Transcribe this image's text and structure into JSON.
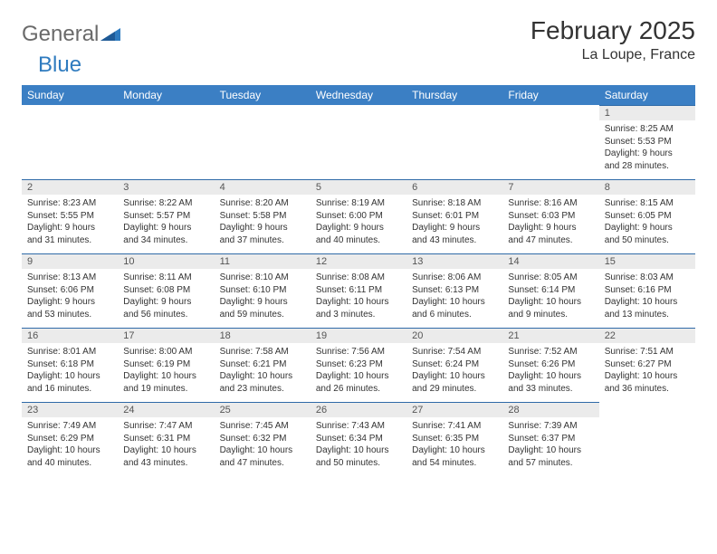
{
  "brand": {
    "part1": "General",
    "part2": "Blue"
  },
  "title": "February 2025",
  "location": "La Loupe, France",
  "colors": {
    "header_bg": "#3b7fc4",
    "header_text": "#ffffff",
    "daynum_bg": "#ebebeb",
    "day_border": "#2f6aa8",
    "text": "#333333",
    "logo_gray": "#6a6a6a",
    "logo_blue": "#2f7bbf"
  },
  "weekdays": [
    "Sunday",
    "Monday",
    "Tuesday",
    "Wednesday",
    "Thursday",
    "Friday",
    "Saturday"
  ],
  "weeks": [
    [
      null,
      null,
      null,
      null,
      null,
      null,
      {
        "n": "1",
        "sr": "Sunrise: 8:25 AM",
        "ss": "Sunset: 5:53 PM",
        "dl": "Daylight: 9 hours and 28 minutes."
      }
    ],
    [
      {
        "n": "2",
        "sr": "Sunrise: 8:23 AM",
        "ss": "Sunset: 5:55 PM",
        "dl": "Daylight: 9 hours and 31 minutes."
      },
      {
        "n": "3",
        "sr": "Sunrise: 8:22 AM",
        "ss": "Sunset: 5:57 PM",
        "dl": "Daylight: 9 hours and 34 minutes."
      },
      {
        "n": "4",
        "sr": "Sunrise: 8:20 AM",
        "ss": "Sunset: 5:58 PM",
        "dl": "Daylight: 9 hours and 37 minutes."
      },
      {
        "n": "5",
        "sr": "Sunrise: 8:19 AM",
        "ss": "Sunset: 6:00 PM",
        "dl": "Daylight: 9 hours and 40 minutes."
      },
      {
        "n": "6",
        "sr": "Sunrise: 8:18 AM",
        "ss": "Sunset: 6:01 PM",
        "dl": "Daylight: 9 hours and 43 minutes."
      },
      {
        "n": "7",
        "sr": "Sunrise: 8:16 AM",
        "ss": "Sunset: 6:03 PM",
        "dl": "Daylight: 9 hours and 47 minutes."
      },
      {
        "n": "8",
        "sr": "Sunrise: 8:15 AM",
        "ss": "Sunset: 6:05 PM",
        "dl": "Daylight: 9 hours and 50 minutes."
      }
    ],
    [
      {
        "n": "9",
        "sr": "Sunrise: 8:13 AM",
        "ss": "Sunset: 6:06 PM",
        "dl": "Daylight: 9 hours and 53 minutes."
      },
      {
        "n": "10",
        "sr": "Sunrise: 8:11 AM",
        "ss": "Sunset: 6:08 PM",
        "dl": "Daylight: 9 hours and 56 minutes."
      },
      {
        "n": "11",
        "sr": "Sunrise: 8:10 AM",
        "ss": "Sunset: 6:10 PM",
        "dl": "Daylight: 9 hours and 59 minutes."
      },
      {
        "n": "12",
        "sr": "Sunrise: 8:08 AM",
        "ss": "Sunset: 6:11 PM",
        "dl": "Daylight: 10 hours and 3 minutes."
      },
      {
        "n": "13",
        "sr": "Sunrise: 8:06 AM",
        "ss": "Sunset: 6:13 PM",
        "dl": "Daylight: 10 hours and 6 minutes."
      },
      {
        "n": "14",
        "sr": "Sunrise: 8:05 AM",
        "ss": "Sunset: 6:14 PM",
        "dl": "Daylight: 10 hours and 9 minutes."
      },
      {
        "n": "15",
        "sr": "Sunrise: 8:03 AM",
        "ss": "Sunset: 6:16 PM",
        "dl": "Daylight: 10 hours and 13 minutes."
      }
    ],
    [
      {
        "n": "16",
        "sr": "Sunrise: 8:01 AM",
        "ss": "Sunset: 6:18 PM",
        "dl": "Daylight: 10 hours and 16 minutes."
      },
      {
        "n": "17",
        "sr": "Sunrise: 8:00 AM",
        "ss": "Sunset: 6:19 PM",
        "dl": "Daylight: 10 hours and 19 minutes."
      },
      {
        "n": "18",
        "sr": "Sunrise: 7:58 AM",
        "ss": "Sunset: 6:21 PM",
        "dl": "Daylight: 10 hours and 23 minutes."
      },
      {
        "n": "19",
        "sr": "Sunrise: 7:56 AM",
        "ss": "Sunset: 6:23 PM",
        "dl": "Daylight: 10 hours and 26 minutes."
      },
      {
        "n": "20",
        "sr": "Sunrise: 7:54 AM",
        "ss": "Sunset: 6:24 PM",
        "dl": "Daylight: 10 hours and 29 minutes."
      },
      {
        "n": "21",
        "sr": "Sunrise: 7:52 AM",
        "ss": "Sunset: 6:26 PM",
        "dl": "Daylight: 10 hours and 33 minutes."
      },
      {
        "n": "22",
        "sr": "Sunrise: 7:51 AM",
        "ss": "Sunset: 6:27 PM",
        "dl": "Daylight: 10 hours and 36 minutes."
      }
    ],
    [
      {
        "n": "23",
        "sr": "Sunrise: 7:49 AM",
        "ss": "Sunset: 6:29 PM",
        "dl": "Daylight: 10 hours and 40 minutes."
      },
      {
        "n": "24",
        "sr": "Sunrise: 7:47 AM",
        "ss": "Sunset: 6:31 PM",
        "dl": "Daylight: 10 hours and 43 minutes."
      },
      {
        "n": "25",
        "sr": "Sunrise: 7:45 AM",
        "ss": "Sunset: 6:32 PM",
        "dl": "Daylight: 10 hours and 47 minutes."
      },
      {
        "n": "26",
        "sr": "Sunrise: 7:43 AM",
        "ss": "Sunset: 6:34 PM",
        "dl": "Daylight: 10 hours and 50 minutes."
      },
      {
        "n": "27",
        "sr": "Sunrise: 7:41 AM",
        "ss": "Sunset: 6:35 PM",
        "dl": "Daylight: 10 hours and 54 minutes."
      },
      {
        "n": "28",
        "sr": "Sunrise: 7:39 AM",
        "ss": "Sunset: 6:37 PM",
        "dl": "Daylight: 10 hours and 57 minutes."
      },
      null
    ]
  ]
}
